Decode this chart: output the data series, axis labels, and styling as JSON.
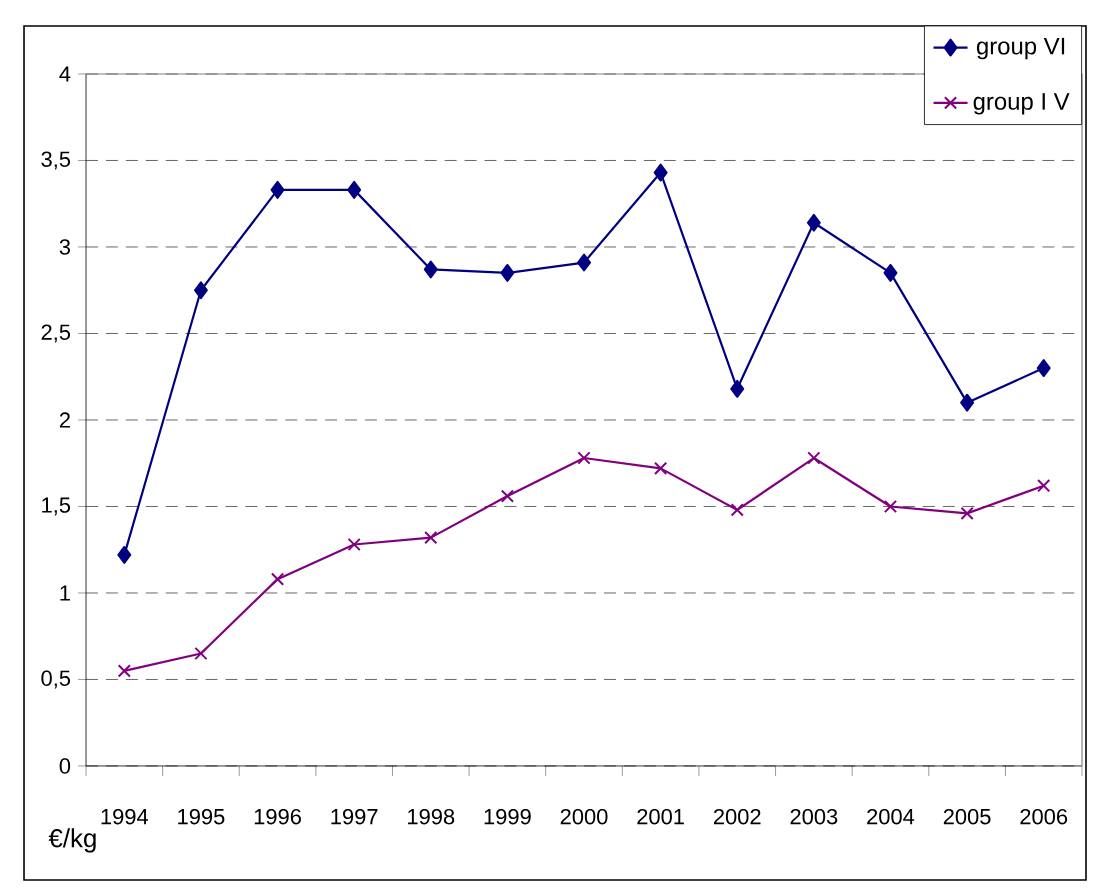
{
  "chart_data": {
    "type": "line",
    "annotations": [
      "€/kg"
    ],
    "categories": [
      "1994",
      "1995",
      "1996",
      "1997",
      "1998",
      "1999",
      "2000",
      "2001",
      "2002",
      "2003",
      "2004",
      "2005",
      "2006"
    ],
    "series": [
      {
        "name": "group VI",
        "color": "#000080",
        "marker": "diamond",
        "values": [
          1.22,
          2.75,
          3.33,
          3.33,
          2.87,
          2.85,
          2.91,
          3.43,
          2.18,
          3.14,
          2.85,
          2.1,
          2.3
        ]
      },
      {
        "name": "group I V",
        "color": "#800080",
        "marker": "cross",
        "values": [
          0.55,
          0.65,
          1.08,
          1.28,
          1.32,
          1.56,
          1.78,
          1.72,
          1.48,
          1.78,
          1.5,
          1.46,
          1.62
        ]
      }
    ],
    "ylim": [
      0,
      4
    ],
    "yticks": [
      0,
      {
        "value": 0.5,
        "label": "0,5"
      },
      1,
      {
        "value": 1.5,
        "label": "1,5"
      },
      2,
      {
        "value": 2.5,
        "label": "2,5"
      },
      3,
      {
        "value": 3.5,
        "label": "3,5"
      },
      4
    ],
    "grid": "y",
    "legend": "top right",
    "line_style": "solid"
  }
}
